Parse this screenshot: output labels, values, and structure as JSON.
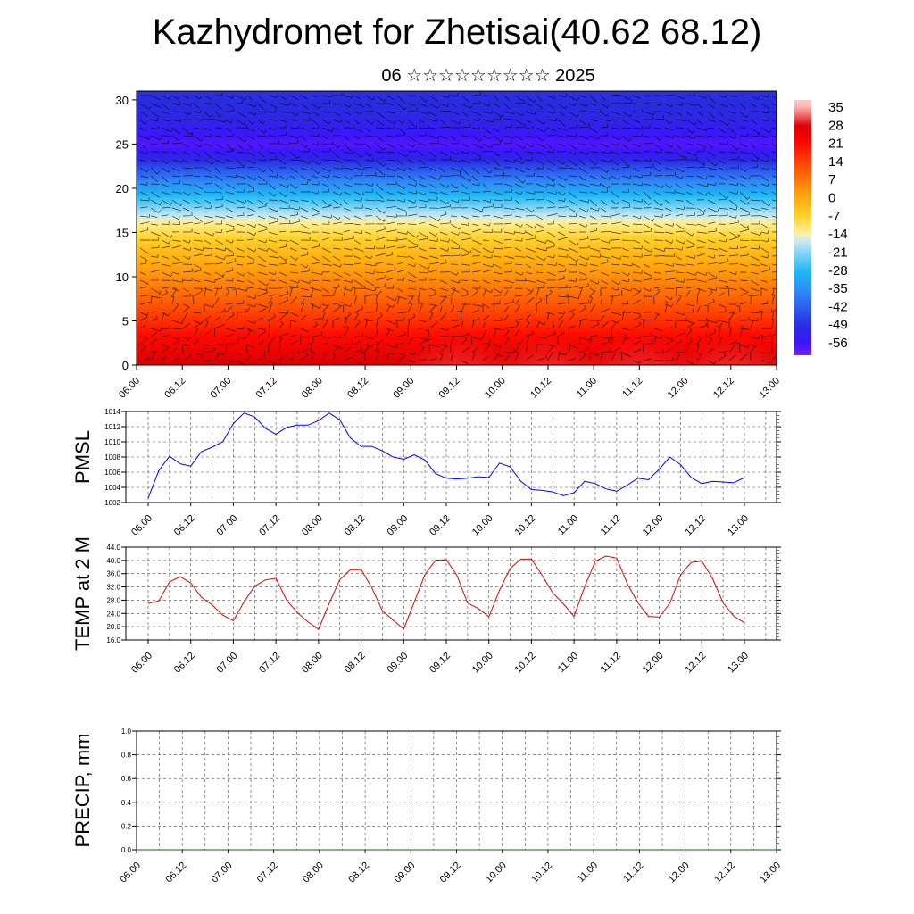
{
  "title": "Kazhydromet for Zhetisai(40.62 68.12)",
  "subtitle": "06 ☆☆☆☆☆☆☆☆☆ 2025",
  "chart_data": [
    {
      "type": "heatmap",
      "name": "vertical temperature and wind cross-section",
      "x_ticks": [
        "06.00",
        "06.12",
        "07.00",
        "07.12",
        "08.00",
        "08.12",
        "09.00",
        "09.12",
        "10.00",
        "10.12",
        "11.00",
        "11.12",
        "12.00",
        "12.12",
        "13.00"
      ],
      "y_ticks": [
        "0",
        "5",
        "10",
        "15",
        "20",
        "25",
        "30"
      ],
      "ylim": [
        0,
        31
      ],
      "colorbar_labels": [
        "35",
        "28",
        "21",
        "14",
        "7",
        "0",
        "-7",
        "-14",
        "-21",
        "-28",
        "-35",
        "-42",
        "-49",
        "-56"
      ],
      "colorbar_range": [
        -60,
        38
      ],
      "temperature_profile": [
        {
          "height": 0,
          "value": 28
        },
        {
          "height": 3,
          "value": 22
        },
        {
          "height": 6,
          "value": 14
        },
        {
          "height": 10,
          "value": 4
        },
        {
          "height": 13,
          "value": -3
        },
        {
          "height": 16,
          "value": -12
        },
        {
          "height": 18,
          "value": -22
        },
        {
          "height": 20,
          "value": -32
        },
        {
          "height": 22,
          "value": -42
        },
        {
          "height": 24,
          "value": -54
        },
        {
          "height": 25,
          "value": -58
        },
        {
          "height": 26,
          "value": -55
        },
        {
          "height": 28,
          "value": -50
        },
        {
          "height": 31,
          "value": -48
        }
      ],
      "surface_warm_peaks": [
        "09.12",
        "10.12",
        "11.12",
        "12.12"
      ]
    },
    {
      "type": "line",
      "ylabel": "PMSL",
      "color": "#0000ff",
      "y_ticks": [
        "1002",
        "1004",
        "1006",
        "1008",
        "1010",
        "1012",
        "1014"
      ],
      "ylim": [
        1002,
        1014
      ],
      "x_ticks": [
        "06.00",
        "06.12",
        "07.00",
        "07.12",
        "08.00",
        "08.12",
        "09.00",
        "09.12",
        "10.00",
        "10.12",
        "11.00",
        "11.12",
        "12.00",
        "12.12",
        "13.00"
      ],
      "values": [
        1002.6,
        1006.2,
        1008.1,
        1007.1,
        1006.8,
        1008.7,
        1009.3,
        1010.0,
        1012.4,
        1013.8,
        1013.3,
        1011.8,
        1011.0,
        1011.9,
        1012.2,
        1012.2,
        1012.8,
        1013.8,
        1012.9,
        1010.5,
        1009.4,
        1009.4,
        1008.8,
        1008.0,
        1007.7,
        1008.3,
        1007.6,
        1005.8,
        1005.2,
        1005.1,
        1005.2,
        1005.4,
        1005.3,
        1007.2,
        1006.7,
        1004.8,
        1003.7,
        1003.6,
        1003.4,
        1002.9,
        1003.3,
        1004.8,
        1004.5,
        1003.8,
        1003.5,
        1004.3,
        1005.2,
        1005.0,
        1006.4,
        1008.0,
        1007.0,
        1005.3,
        1004.5,
        1004.8,
        1004.7,
        1004.6,
        1005.3
      ]
    },
    {
      "type": "line",
      "ylabel": "TEMP at 2 M",
      "color": "#e00000",
      "y_ticks": [
        "16.0",
        "20.0",
        "24.0",
        "28.0",
        "32.0",
        "36.0",
        "40.0",
        "44.0"
      ],
      "ylim": [
        16,
        44
      ],
      "x_ticks": [
        "06.00",
        "06.12",
        "07.00",
        "07.12",
        "08.00",
        "08.12",
        "09.00",
        "09.12",
        "10.00",
        "10.12",
        "11.00",
        "11.12",
        "12.00",
        "12.12",
        "13.00"
      ],
      "values": [
        27.0,
        27.8,
        33.5,
        35.1,
        33.2,
        28.9,
        26.6,
        23.5,
        21.8,
        27.5,
        32.2,
        34.1,
        34.6,
        28.0,
        24.3,
        21.5,
        19.2,
        27.0,
        34.2,
        37.2,
        37.2,
        31.8,
        24.8,
        22.0,
        19.3,
        27.5,
        35.8,
        40.1,
        40.2,
        35.5,
        27.1,
        25.5,
        23.0,
        31.0,
        37.6,
        40.4,
        40.4,
        35.5,
        30.2,
        26.9,
        23.1,
        32.1,
        39.8,
        41.3,
        40.7,
        33.0,
        27.2,
        23.1,
        22.9,
        27.1,
        35.6,
        39.4,
        39.8,
        34.6,
        27.2,
        23.2,
        21.2
      ]
    },
    {
      "type": "line",
      "ylabel": "PRECIP, mm",
      "color": "#007000",
      "y_ticks": [
        "0.0",
        "0.2",
        "0.4",
        "0.6",
        "0.8",
        "1.0"
      ],
      "ylim": [
        0,
        1
      ],
      "x_ticks": [
        "06.00",
        "06.12",
        "07.00",
        "07.12",
        "08.00",
        "08.12",
        "09.00",
        "09.12",
        "10.00",
        "10.12",
        "11.00",
        "11.12",
        "12.00",
        "12.12",
        "13.00"
      ],
      "values": [
        0,
        0,
        0,
        0,
        0,
        0,
        0,
        0,
        0,
        0,
        0,
        0,
        0,
        0,
        0,
        0,
        0,
        0,
        0,
        0,
        0,
        0,
        0,
        0,
        0,
        0,
        0,
        0,
        0,
        0,
        0,
        0,
        0,
        0,
        0,
        0,
        0,
        0,
        0,
        0,
        0,
        0,
        0,
        0,
        0,
        0,
        0,
        0,
        0,
        0,
        0,
        0,
        0,
        0,
        0,
        0,
        0
      ]
    }
  ]
}
